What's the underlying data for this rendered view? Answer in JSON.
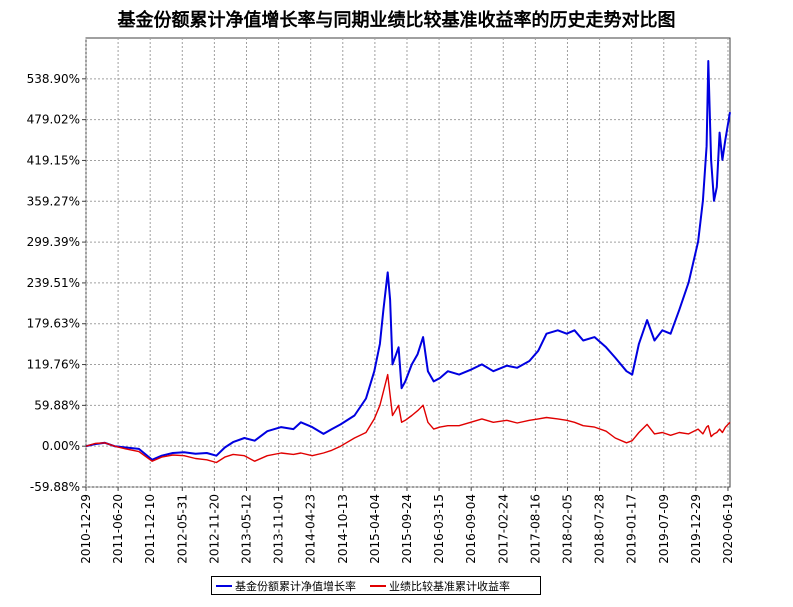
{
  "colors": {
    "fund": "#0000e0",
    "benchmark": "#e00000",
    "grid": "#a0a0a0",
    "axis": "#404040"
  },
  "chart_data": {
    "type": "line",
    "title": "基金份额累计净值增长率与同期业绩比较基准收益率的历史走势对比图",
    "ylabel": "",
    "xlabel": "",
    "ylim": [
      -59.88,
      598.78
    ],
    "yticks": [
      "-59.88%",
      "0.00%",
      "59.88%",
      "119.76%",
      "179.63%",
      "239.51%",
      "299.39%",
      "359.27%",
      "419.15%",
      "479.02%",
      "538.90%"
    ],
    "ytick_values": [
      -59.88,
      0,
      59.88,
      119.76,
      179.63,
      239.51,
      299.39,
      359.27,
      419.15,
      479.02,
      538.9
    ],
    "xlim": [
      "2010-12-29",
      "2020-06-30"
    ],
    "xticks": [
      "2010-12-29",
      "2011-06-20",
      "2011-12-10",
      "2012-05-31",
      "2012-11-20",
      "2013-05-12",
      "2013-11-01",
      "2014-04-23",
      "2014-10-13",
      "2015-04-04",
      "2015-09-24",
      "2016-03-15",
      "2016-09-04",
      "2017-02-24",
      "2017-08-16",
      "2018-02-05",
      "2018-07-28",
      "2019-01-17",
      "2019-07-09",
      "2019-12-29",
      "2020-06-19"
    ],
    "grid": true,
    "legend_position": "bottom",
    "series": [
      {
        "name": "基金份额累计净值增长率",
        "points": [
          [
            "2010-12-29",
            0
          ],
          [
            "2011-02-15",
            3
          ],
          [
            "2011-04-10",
            5
          ],
          [
            "2011-06-01",
            0
          ],
          [
            "2011-08-01",
            -2
          ],
          [
            "2011-10-10",
            -4
          ],
          [
            "2011-12-20",
            -20
          ],
          [
            "2012-02-10",
            -14
          ],
          [
            "2012-04-10",
            -10
          ],
          [
            "2012-06-10",
            -9
          ],
          [
            "2012-08-10",
            -11
          ],
          [
            "2012-10-10",
            -10
          ],
          [
            "2012-12-01",
            -14
          ],
          [
            "2013-01-15",
            -2
          ],
          [
            "2013-03-01",
            6
          ],
          [
            "2013-05-01",
            12
          ],
          [
            "2013-06-25",
            8
          ],
          [
            "2013-09-01",
            22
          ],
          [
            "2013-11-15",
            28
          ],
          [
            "2014-01-20",
            25
          ],
          [
            "2014-03-01",
            35
          ],
          [
            "2014-05-01",
            28
          ],
          [
            "2014-07-01",
            18
          ],
          [
            "2014-08-15",
            25
          ],
          [
            "2014-10-01",
            32
          ],
          [
            "2014-12-15",
            45
          ],
          [
            "2015-02-15",
            70
          ],
          [
            "2015-04-01",
            110
          ],
          [
            "2015-05-01",
            150
          ],
          [
            "2015-05-20",
            200
          ],
          [
            "2015-06-12",
            255
          ],
          [
            "2015-06-25",
            215
          ],
          [
            "2015-07-08",
            120
          ],
          [
            "2015-08-10",
            145
          ],
          [
            "2015-08-26",
            85
          ],
          [
            "2015-09-15",
            95
          ],
          [
            "2015-10-20",
            120
          ],
          [
            "2015-11-20",
            135
          ],
          [
            "2015-12-20",
            160
          ],
          [
            "2016-01-15",
            110
          ],
          [
            "2016-02-15",
            95
          ],
          [
            "2016-03-20",
            100
          ],
          [
            "2016-05-01",
            110
          ],
          [
            "2016-07-01",
            105
          ],
          [
            "2016-09-01",
            112
          ],
          [
            "2016-11-01",
            120
          ],
          [
            "2017-01-01",
            110
          ],
          [
            "2017-03-15",
            118
          ],
          [
            "2017-05-10",
            115
          ],
          [
            "2017-07-15",
            125
          ],
          [
            "2017-09-01",
            140
          ],
          [
            "2017-10-15",
            165
          ],
          [
            "2017-12-15",
            170
          ],
          [
            "2018-02-01",
            165
          ],
          [
            "2018-03-15",
            170
          ],
          [
            "2018-05-01",
            155
          ],
          [
            "2018-07-01",
            160
          ],
          [
            "2018-09-01",
            145
          ],
          [
            "2018-10-20",
            130
          ],
          [
            "2018-12-20",
            110
          ],
          [
            "2019-01-20",
            105
          ],
          [
            "2019-02-25",
            150
          ],
          [
            "2019-04-10",
            185
          ],
          [
            "2019-05-20",
            155
          ],
          [
            "2019-07-01",
            170
          ],
          [
            "2019-08-15",
            165
          ],
          [
            "2019-10-01",
            200
          ],
          [
            "2019-11-20",
            240
          ],
          [
            "2020-01-10",
            300
          ],
          [
            "2020-02-05",
            360
          ],
          [
            "2020-02-25",
            440
          ],
          [
            "2020-03-05",
            565
          ],
          [
            "2020-03-20",
            420
          ],
          [
            "2020-04-05",
            360
          ],
          [
            "2020-04-20",
            380
          ],
          [
            "2020-05-05",
            460
          ],
          [
            "2020-05-20",
            420
          ],
          [
            "2020-06-05",
            450
          ],
          [
            "2020-06-30",
            490
          ]
        ]
      },
      {
        "name": "业绩比较基准累计收益率",
        "points": [
          [
            "2010-12-29",
            0
          ],
          [
            "2011-02-15",
            4
          ],
          [
            "2011-04-10",
            5
          ],
          [
            "2011-06-01",
            0
          ],
          [
            "2011-08-01",
            -4
          ],
          [
            "2011-10-10",
            -8
          ],
          [
            "2011-12-20",
            -22
          ],
          [
            "2012-02-10",
            -16
          ],
          [
            "2012-04-10",
            -13
          ],
          [
            "2012-06-10",
            -14
          ],
          [
            "2012-08-10",
            -18
          ],
          [
            "2012-10-10",
            -20
          ],
          [
            "2012-12-01",
            -24
          ],
          [
            "2013-01-15",
            -16
          ],
          [
            "2013-03-01",
            -12
          ],
          [
            "2013-05-01",
            -14
          ],
          [
            "2013-06-25",
            -22
          ],
          [
            "2013-09-01",
            -14
          ],
          [
            "2013-11-15",
            -10
          ],
          [
            "2014-01-20",
            -12
          ],
          [
            "2014-03-01",
            -10
          ],
          [
            "2014-05-01",
            -14
          ],
          [
            "2014-07-01",
            -10
          ],
          [
            "2014-08-15",
            -6
          ],
          [
            "2014-10-01",
            0
          ],
          [
            "2014-12-15",
            12
          ],
          [
            "2015-02-15",
            20
          ],
          [
            "2015-04-01",
            40
          ],
          [
            "2015-05-01",
            60
          ],
          [
            "2015-05-20",
            80
          ],
          [
            "2015-06-12",
            105
          ],
          [
            "2015-06-25",
            75
          ],
          [
            "2015-07-08",
            45
          ],
          [
            "2015-08-10",
            60
          ],
          [
            "2015-08-26",
            35
          ],
          [
            "2015-09-15",
            38
          ],
          [
            "2015-10-20",
            45
          ],
          [
            "2015-11-20",
            52
          ],
          [
            "2015-12-20",
            60
          ],
          [
            "2016-01-15",
            35
          ],
          [
            "2016-02-15",
            25
          ],
          [
            "2016-03-20",
            28
          ],
          [
            "2016-05-01",
            30
          ],
          [
            "2016-07-01",
            30
          ],
          [
            "2016-09-01",
            35
          ],
          [
            "2016-11-01",
            40
          ],
          [
            "2017-01-01",
            35
          ],
          [
            "2017-03-15",
            38
          ],
          [
            "2017-05-10",
            34
          ],
          [
            "2017-07-15",
            38
          ],
          [
            "2017-09-01",
            40
          ],
          [
            "2017-10-15",
            42
          ],
          [
            "2017-12-15",
            40
          ],
          [
            "2018-02-01",
            38
          ],
          [
            "2018-03-15",
            35
          ],
          [
            "2018-05-01",
            30
          ],
          [
            "2018-07-01",
            28
          ],
          [
            "2018-09-01",
            22
          ],
          [
            "2018-10-20",
            12
          ],
          [
            "2018-12-20",
            5
          ],
          [
            "2019-01-20",
            8
          ],
          [
            "2019-02-25",
            20
          ],
          [
            "2019-04-10",
            32
          ],
          [
            "2019-05-20",
            18
          ],
          [
            "2019-07-01",
            20
          ],
          [
            "2019-08-15",
            16
          ],
          [
            "2019-10-01",
            20
          ],
          [
            "2019-11-20",
            18
          ],
          [
            "2020-01-10",
            25
          ],
          [
            "2020-02-05",
            18
          ],
          [
            "2020-02-25",
            28
          ],
          [
            "2020-03-05",
            30
          ],
          [
            "2020-03-20",
            14
          ],
          [
            "2020-04-05",
            18
          ],
          [
            "2020-04-20",
            20
          ],
          [
            "2020-05-05",
            25
          ],
          [
            "2020-05-20",
            20
          ],
          [
            "2020-06-05",
            28
          ],
          [
            "2020-06-30",
            35
          ]
        ]
      }
    ]
  }
}
